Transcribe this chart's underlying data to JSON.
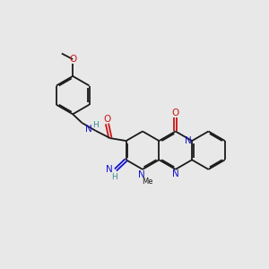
{
  "bg_color": "#e8e8e8",
  "bond_color": "#1a1a1a",
  "N_color": "#1414cc",
  "O_color": "#cc1414",
  "NH_color": "#3a8a8a",
  "fig_size": [
    3.0,
    3.0
  ],
  "dpi": 100,
  "xlim": [
    0,
    10
  ],
  "ylim": [
    0,
    10
  ]
}
